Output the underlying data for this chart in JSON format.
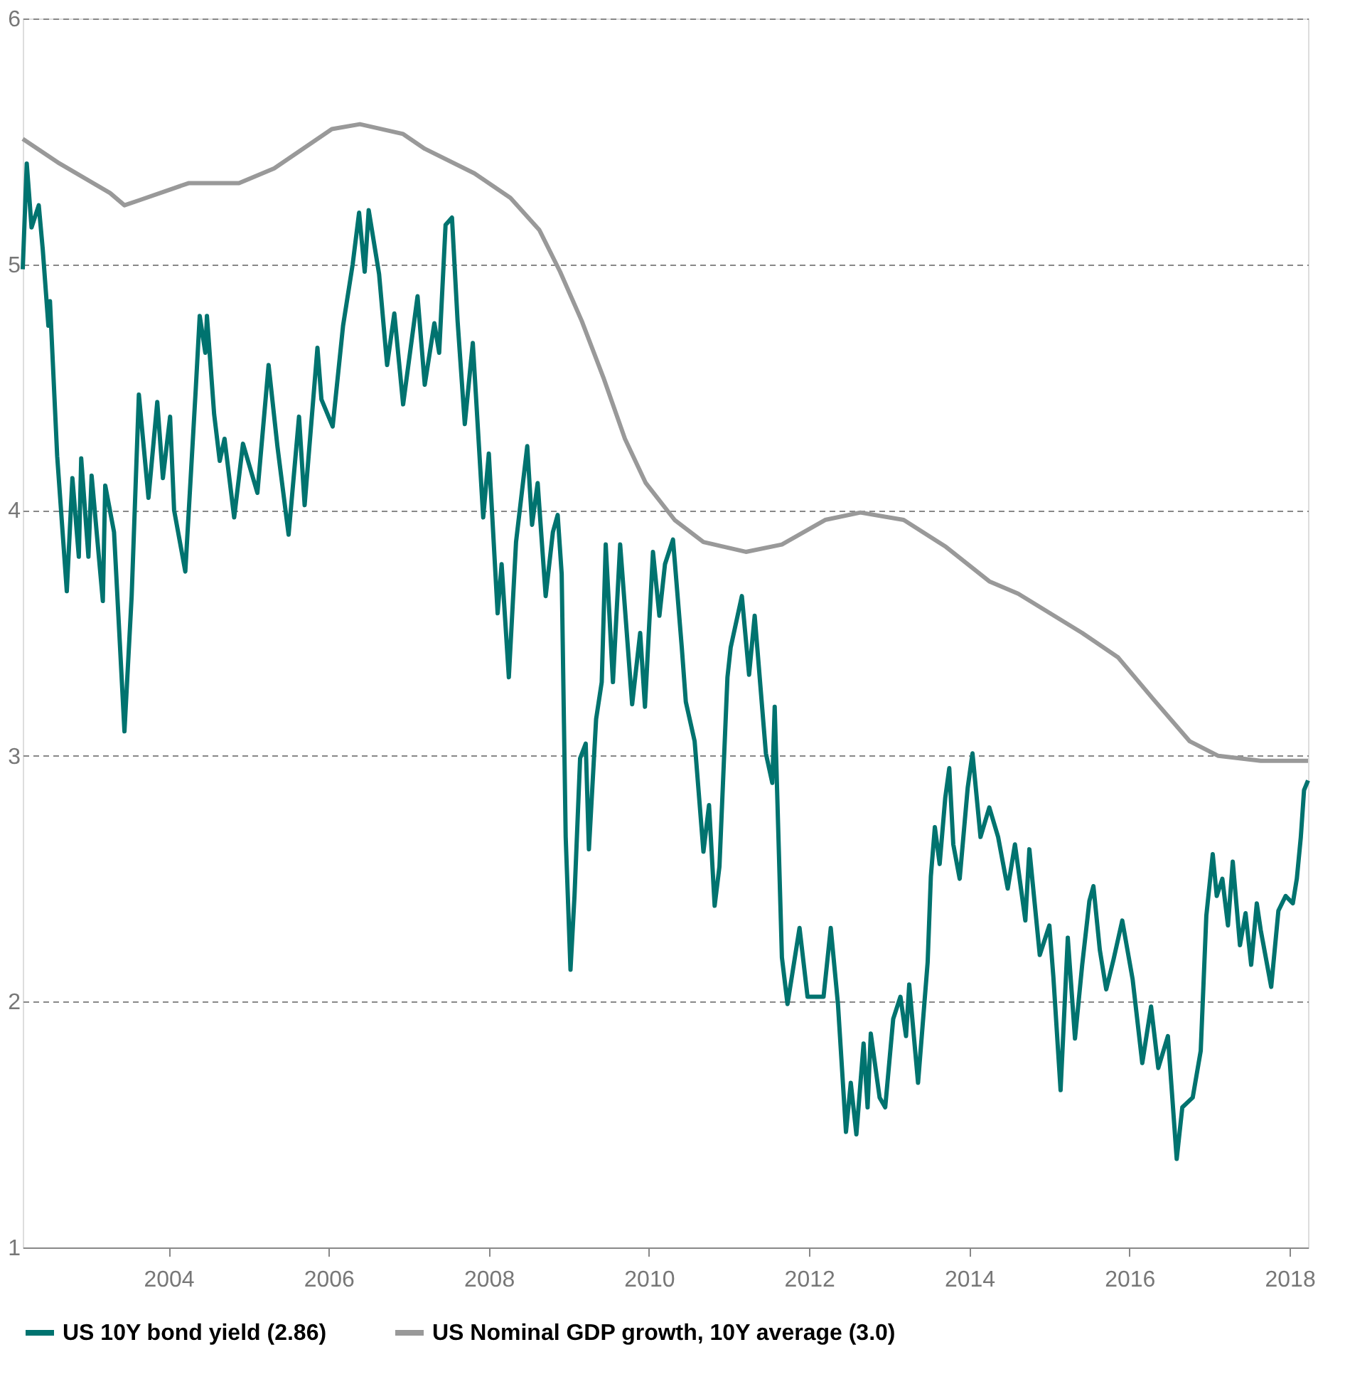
{
  "chart_data": {
    "type": "line",
    "xlim": [
      2002.18,
      2018.23
    ],
    "xticks": [
      2004,
      2006,
      2008,
      2010,
      2012,
      2014,
      2016,
      2018
    ],
    "ylim": [
      1,
      6
    ],
    "yticks": [
      1,
      2,
      3,
      4,
      5,
      6
    ],
    "grid": "y",
    "legend": "bottom",
    "series": [
      {
        "name": "US 10Y bond yield (2.86)",
        "color": "#00736f",
        "x": [
          2002.18,
          2002.23,
          2002.29,
          2002.38,
          2002.43,
          2002.5,
          2002.52,
          2002.61,
          2002.73,
          2002.8,
          2002.88,
          2002.91,
          2003.0,
          2003.04,
          2003.18,
          2003.21,
          2003.32,
          2003.45,
          2003.54,
          2003.63,
          2003.75,
          2003.86,
          2003.93,
          2004.02,
          2004.07,
          2004.21,
          2004.34,
          2004.39,
          2004.46,
          2004.48,
          2004.57,
          2004.64,
          2004.7,
          2004.82,
          2004.93,
          2005.11,
          2005.25,
          2005.36,
          2005.5,
          2005.63,
          2005.7,
          2005.86,
          2005.91,
          2006.05,
          2006.18,
          2006.3,
          2006.38,
          2006.45,
          2006.5,
          2006.63,
          2006.73,
          2006.82,
          2006.93,
          2007.11,
          2007.2,
          2007.32,
          2007.38,
          2007.46,
          2007.54,
          2007.61,
          2007.7,
          2007.8,
          2007.93,
          2008.0,
          2008.11,
          2008.16,
          2008.25,
          2008.34,
          2008.48,
          2008.54,
          2008.61,
          2008.71,
          2008.8,
          2008.86,
          2008.91,
          2008.96,
          2009.02,
          2009.07,
          2009.14,
          2009.21,
          2009.25,
          2009.34,
          2009.41,
          2009.46,
          2009.55,
          2009.64,
          2009.79,
          2009.89,
          2009.95,
          2010.05,
          2010.13,
          2010.2,
          2010.3,
          2010.41,
          2010.46,
          2010.57,
          2010.68,
          2010.75,
          2010.82,
          2010.88,
          2010.98,
          2011.02,
          2011.16,
          2011.25,
          2011.32,
          2011.46,
          2011.54,
          2011.57,
          2011.66,
          2011.73,
          2011.88,
          2011.98,
          2012.18,
          2012.27,
          2012.36,
          2012.46,
          2012.52,
          2012.59,
          2012.68,
          2012.73,
          2012.77,
          2012.88,
          2012.95,
          2013.05,
          2013.14,
          2013.21,
          2013.25,
          2013.36,
          2013.48,
          2013.52,
          2013.57,
          2013.63,
          2013.7,
          2013.75,
          2013.8,
          2013.88,
          2013.98,
          2014.04,
          2014.14,
          2014.25,
          2014.36,
          2014.48,
          2014.57,
          2014.7,
          2014.75,
          2014.88,
          2015.0,
          2015.05,
          2015.14,
          2015.23,
          2015.32,
          2015.41,
          2015.5,
          2015.55,
          2015.63,
          2015.71,
          2015.8,
          2015.91,
          2016.04,
          2016.16,
          2016.27,
          2016.36,
          2016.48,
          2016.59,
          2016.66,
          2016.79,
          2016.89,
          2016.96,
          2017.04,
          2017.09,
          2017.16,
          2017.23,
          2017.29,
          2017.38,
          2017.45,
          2017.52,
          2017.59,
          2017.64,
          2017.77,
          2017.86,
          2017.95,
          2018.04,
          2018.09,
          2018.14,
          2018.18,
          2018.23
        ],
        "values": [
          4.98,
          5.41,
          5.15,
          5.24,
          5.06,
          4.75,
          4.85,
          4.22,
          3.67,
          4.13,
          3.81,
          4.21,
          3.81,
          4.14,
          3.63,
          4.1,
          3.91,
          3.1,
          3.65,
          4.47,
          4.05,
          4.44,
          4.13,
          4.38,
          4.0,
          3.75,
          4.49,
          4.79,
          4.64,
          4.79,
          4.39,
          4.2,
          4.29,
          3.97,
          4.27,
          4.07,
          4.59,
          4.26,
          3.9,
          4.38,
          4.02,
          4.66,
          4.45,
          4.34,
          4.75,
          5.0,
          5.21,
          4.97,
          5.22,
          4.96,
          4.59,
          4.8,
          4.43,
          4.87,
          4.51,
          4.76,
          4.64,
          5.16,
          5.19,
          4.77,
          4.35,
          4.68,
          3.97,
          4.23,
          3.58,
          3.78,
          3.32,
          3.87,
          4.26,
          3.94,
          4.11,
          3.65,
          3.91,
          3.98,
          3.74,
          2.67,
          2.13,
          2.43,
          2.99,
          3.05,
          2.62,
          3.15,
          3.3,
          3.86,
          3.3,
          3.86,
          3.21,
          3.5,
          3.2,
          3.83,
          3.57,
          3.78,
          3.88,
          3.44,
          3.22,
          3.06,
          2.61,
          2.8,
          2.39,
          2.55,
          3.32,
          3.44,
          3.65,
          3.33,
          3.57,
          3.01,
          2.89,
          3.2,
          2.18,
          1.99,
          2.3,
          2.02,
          2.02,
          2.3,
          1.99,
          1.47,
          1.67,
          1.46,
          1.83,
          1.57,
          1.87,
          1.61,
          1.57,
          1.93,
          2.02,
          1.86,
          2.07,
          1.67,
          2.16,
          2.51,
          2.71,
          2.56,
          2.83,
          2.95,
          2.64,
          2.5,
          2.87,
          3.01,
          2.67,
          2.79,
          2.67,
          2.46,
          2.64,
          2.33,
          2.62,
          2.19,
          2.31,
          2.1,
          1.64,
          2.26,
          1.85,
          2.15,
          2.41,
          2.47,
          2.21,
          2.05,
          2.17,
          2.33,
          2.09,
          1.75,
          1.98,
          1.73,
          1.86,
          1.36,
          1.57,
          1.61,
          1.8,
          2.35,
          2.6,
          2.43,
          2.5,
          2.31,
          2.57,
          2.23,
          2.36,
          2.15,
          2.4,
          2.29,
          2.06,
          2.37,
          2.43,
          2.4,
          2.5,
          2.67,
          2.86,
          2.9
        ]
      },
      {
        "name": "US Nominal GDP growth, 10Y average (3.0)",
        "color": "#999999",
        "x": [
          2002.18,
          2002.64,
          2003.27,
          2003.45,
          2003.63,
          2004.25,
          2004.88,
          2005.32,
          2006.04,
          2006.39,
          2006.93,
          2007.2,
          2007.82,
          2008.27,
          2008.63,
          2008.89,
          2009.16,
          2009.43,
          2009.7,
          2009.96,
          2010.32,
          2010.68,
          2011.21,
          2011.66,
          2012.2,
          2012.64,
          2013.18,
          2013.71,
          2014.25,
          2014.61,
          2015.41,
          2015.86,
          2016.3,
          2016.75,
          2017.11,
          2017.64,
          2018.23
        ],
        "values": [
          5.51,
          5.41,
          5.29,
          5.24,
          5.26,
          5.33,
          5.33,
          5.39,
          5.55,
          5.57,
          5.53,
          5.47,
          5.37,
          5.27,
          5.14,
          4.97,
          4.77,
          4.54,
          4.29,
          4.11,
          3.96,
          3.87,
          3.83,
          3.86,
          3.96,
          3.99,
          3.96,
          3.85,
          3.71,
          3.66,
          3.5,
          3.4,
          3.23,
          3.06,
          3.0,
          2.98,
          2.98
        ]
      }
    ]
  }
}
